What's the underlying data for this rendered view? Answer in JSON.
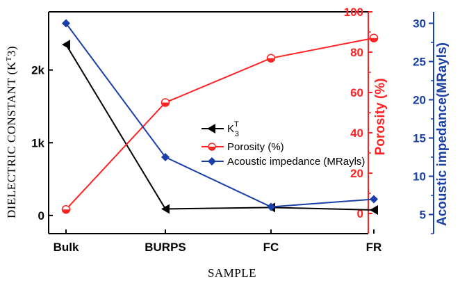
{
  "chart_data": {
    "type": "line",
    "categories": [
      "Bulk",
      "BURPS",
      "FC",
      "FR"
    ],
    "xlabel": "SAMPLE",
    "axes": {
      "left": {
        "label": "DIELECTRIC CONSTANT (K",
        "label_sup": "T",
        "label_tail": "3)",
        "ylim": [
          -250,
          2800
        ],
        "ticks": [
          0,
          1000,
          2000
        ],
        "tick_labels": [
          "0",
          "1k",
          "2k"
        ],
        "color": "#000000"
      },
      "right1": {
        "label": "Porosity (%)",
        "ylim": [
          -10,
          100
        ],
        "ticks": [
          0,
          20,
          40,
          60,
          80,
          100
        ],
        "tick_labels": [
          "0",
          "20",
          "40",
          "60",
          "80",
          "100"
        ],
        "color": "#ff2222"
      },
      "right2": {
        "label": "Acoustic impedance(MRayls)",
        "ylim": [
          2.5,
          31.5
        ],
        "ticks": [
          5,
          10,
          15,
          20,
          25,
          30
        ],
        "tick_labels": [
          "5",
          "10",
          "15",
          "20",
          "25",
          "30"
        ],
        "color": "#1a3fa6"
      }
    },
    "series": [
      {
        "name": "K",
        "name_sup": "T",
        "name_sub": "3",
        "axis": "left",
        "values": [
          2350,
          90,
          110,
          75
        ],
        "color": "#000000",
        "marker": "triangle-left"
      },
      {
        "name": "Porosity (%)",
        "axis": "right1",
        "values": [
          2,
          55,
          77,
          87
        ],
        "color": "#ff2222",
        "marker": "circle-half"
      },
      {
        "name": "Acoustic impedance (MRayls)",
        "axis": "right2",
        "values": [
          30,
          12.5,
          6,
          7
        ],
        "color": "#1a3fa6",
        "marker": "diamond"
      }
    ],
    "legend_position": "center"
  }
}
